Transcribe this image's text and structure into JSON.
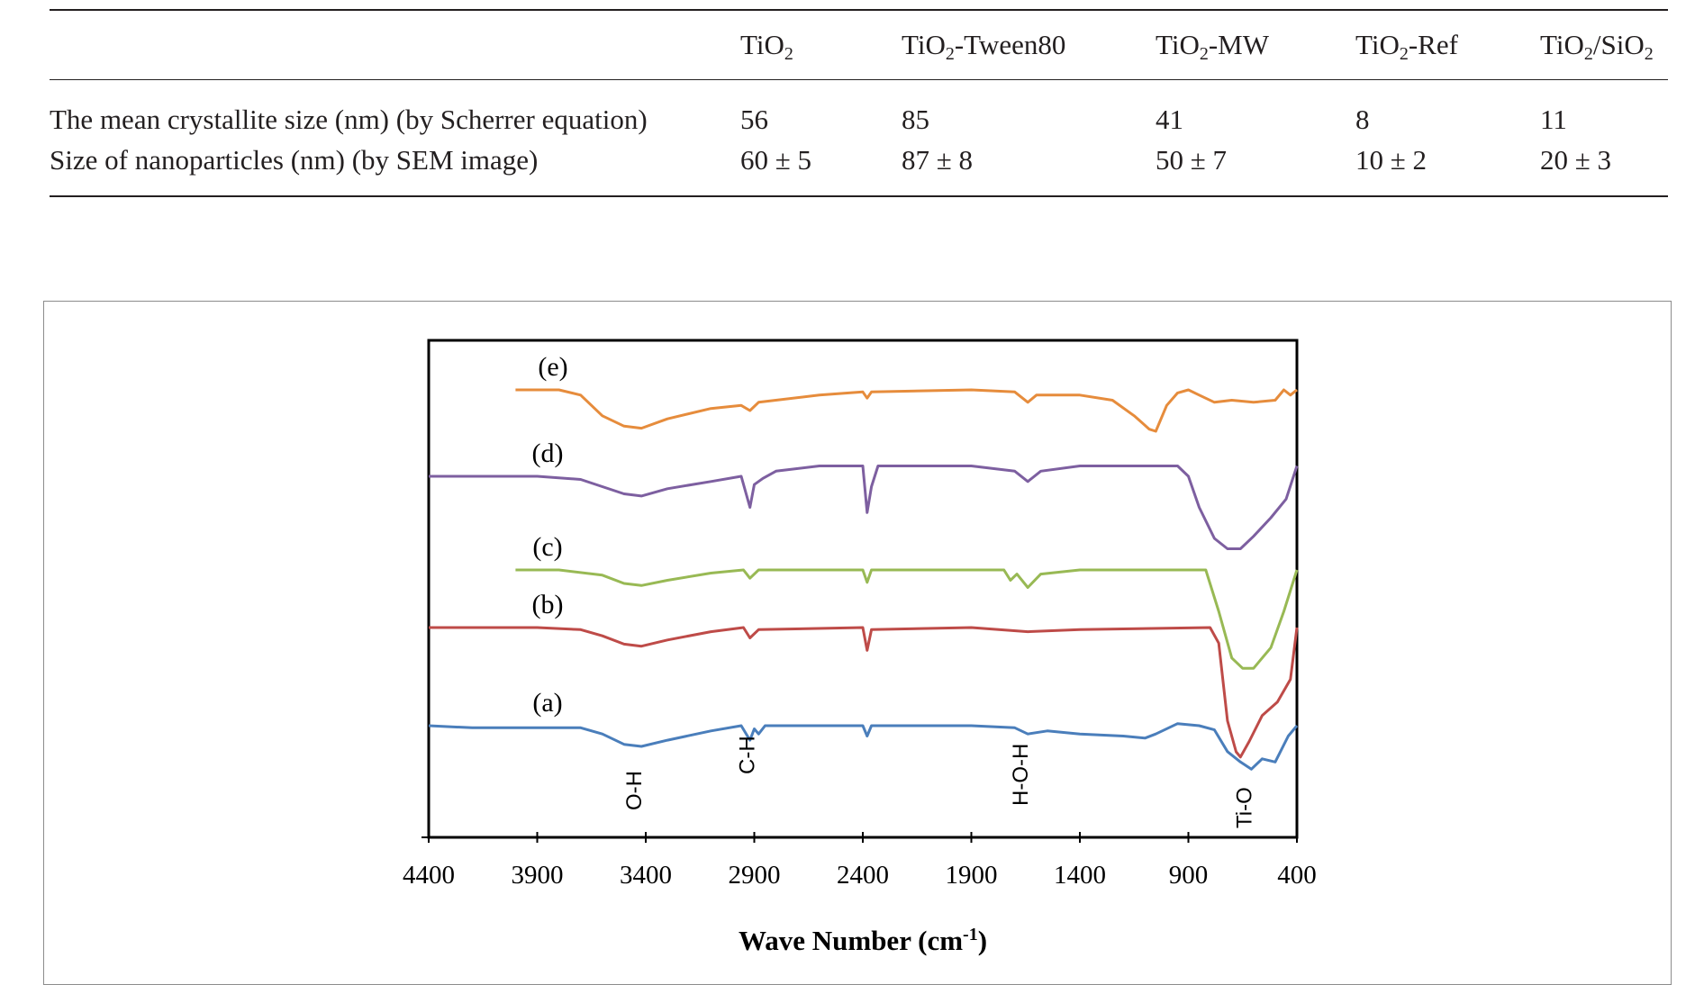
{
  "table": {
    "columns": [
      {
        "base": "",
        "sub": "",
        "rest": ""
      },
      {
        "base": "TiO",
        "sub": "2",
        "rest": ""
      },
      {
        "base": "TiO",
        "sub": "2",
        "rest": "-Tween80"
      },
      {
        "base": "TiO",
        "sub": "2",
        "rest": "-MW"
      },
      {
        "base": "TiO",
        "sub": "2",
        "rest": "-Ref"
      },
      {
        "base": "TiO",
        "sub": "2",
        "rest": "/SiO",
        "sub2": "2"
      }
    ],
    "rows": [
      {
        "label": "The mean crystallite size (nm) (by Scherrer equation)",
        "values": [
          "56",
          "85",
          "41",
          "8",
          "11"
        ]
      },
      {
        "label": "Size of nanoparticles (nm) (by SEM image)",
        "values": [
          "60 ± 5",
          "87 ± 8",
          "50 ± 7",
          "10 ± 2",
          "20 ± 3"
        ]
      }
    ]
  },
  "chart_data": {
    "type": "line",
    "xlabel": "Wave Number (cm",
    "xlabel_sup": "-1",
    "xlabel_close": ")",
    "xlim": [
      4400,
      400
    ],
    "x_ticks": [
      "4400",
      "3900",
      "3400",
      "2900",
      "2400",
      "1900",
      "1400",
      "900",
      "400"
    ],
    "x_tick_values": [
      4400,
      3900,
      3400,
      2900,
      2400,
      1900,
      1400,
      900,
      400
    ],
    "grid": false,
    "band_labels": [
      {
        "text": "O-H",
        "x": 3420
      },
      {
        "text": "C-H",
        "x": 2900
      },
      {
        "text": "H-O-H",
        "x": 1640
      },
      {
        "text": "Ti-O",
        "x": 610
      }
    ],
    "series": [
      {
        "label": "(a)",
        "color": "#4a7ebb",
        "points": [
          [
            4400,
            0.0
          ],
          [
            4200,
            -0.02
          ],
          [
            3900,
            -0.02
          ],
          [
            3700,
            -0.02
          ],
          [
            3600,
            -0.08
          ],
          [
            3500,
            -0.18
          ],
          [
            3420,
            -0.2
          ],
          [
            3300,
            -0.14
          ],
          [
            3100,
            -0.05
          ],
          [
            2960,
            0.0
          ],
          [
            2920,
            -0.14
          ],
          [
            2900,
            -0.03
          ],
          [
            2880,
            -0.08
          ],
          [
            2850,
            0.0
          ],
          [
            2400,
            0.0
          ],
          [
            2380,
            -0.1
          ],
          [
            2360,
            0.0
          ],
          [
            1900,
            0.0
          ],
          [
            1700,
            -0.02
          ],
          [
            1640,
            -0.08
          ],
          [
            1550,
            -0.05
          ],
          [
            1400,
            -0.08
          ],
          [
            1200,
            -0.1
          ],
          [
            1100,
            -0.12
          ],
          [
            1050,
            -0.08
          ],
          [
            950,
            0.02
          ],
          [
            850,
            0.0
          ],
          [
            780,
            -0.04
          ],
          [
            720,
            -0.25
          ],
          [
            660,
            -0.35
          ],
          [
            610,
            -0.42
          ],
          [
            560,
            -0.32
          ],
          [
            500,
            -0.35
          ],
          [
            440,
            -0.1
          ],
          [
            400,
            0.0
          ]
        ]
      },
      {
        "label": "(b)",
        "color": "#be4b48",
        "points": [
          [
            4400,
            0.0
          ],
          [
            3900,
            0.0
          ],
          [
            3700,
            -0.02
          ],
          [
            3600,
            -0.08
          ],
          [
            3500,
            -0.16
          ],
          [
            3420,
            -0.18
          ],
          [
            3300,
            -0.12
          ],
          [
            3100,
            -0.04
          ],
          [
            2950,
            0.0
          ],
          [
            2920,
            -0.1
          ],
          [
            2880,
            -0.02
          ],
          [
            2400,
            0.0
          ],
          [
            2380,
            -0.22
          ],
          [
            2360,
            -0.02
          ],
          [
            1900,
            0.0
          ],
          [
            1640,
            -0.04
          ],
          [
            1400,
            -0.02
          ],
          [
            800,
            0.0
          ],
          [
            760,
            -0.15
          ],
          [
            720,
            -0.9
          ],
          [
            680,
            -1.2
          ],
          [
            660,
            -1.25
          ],
          [
            620,
            -1.1
          ],
          [
            560,
            -0.85
          ],
          [
            490,
            -0.72
          ],
          [
            430,
            -0.5
          ],
          [
            400,
            0.0
          ]
        ]
      },
      {
        "label": "(c)",
        "color": "#98b954",
        "points": [
          [
            4000,
            0.0
          ],
          [
            3800,
            0.0
          ],
          [
            3600,
            -0.05
          ],
          [
            3500,
            -0.13
          ],
          [
            3420,
            -0.15
          ],
          [
            3300,
            -0.1
          ],
          [
            3100,
            -0.03
          ],
          [
            2950,
            0.0
          ],
          [
            2920,
            -0.08
          ],
          [
            2880,
            0.0
          ],
          [
            2400,
            0.0
          ],
          [
            2380,
            -0.12
          ],
          [
            2360,
            0.0
          ],
          [
            1750,
            0.0
          ],
          [
            1720,
            -0.1
          ],
          [
            1690,
            -0.04
          ],
          [
            1640,
            -0.17
          ],
          [
            1580,
            -0.04
          ],
          [
            1400,
            0.0
          ],
          [
            1100,
            0.0
          ],
          [
            820,
            0.0
          ],
          [
            760,
            -0.4
          ],
          [
            700,
            -0.85
          ],
          [
            650,
            -0.95
          ],
          [
            600,
            -0.95
          ],
          [
            520,
            -0.75
          ],
          [
            460,
            -0.4
          ],
          [
            400,
            0.0
          ]
        ]
      },
      {
        "label": "(d)",
        "color": "#7d5fa0",
        "points": [
          [
            4400,
            0.0
          ],
          [
            3900,
            0.0
          ],
          [
            3700,
            -0.03
          ],
          [
            3600,
            -0.1
          ],
          [
            3500,
            -0.17
          ],
          [
            3420,
            -0.19
          ],
          [
            3300,
            -0.12
          ],
          [
            3100,
            -0.05
          ],
          [
            2960,
            0.0
          ],
          [
            2920,
            -0.3
          ],
          [
            2900,
            -0.08
          ],
          [
            2860,
            -0.02
          ],
          [
            2800,
            0.05
          ],
          [
            2600,
            0.1
          ],
          [
            2400,
            0.1
          ],
          [
            2380,
            -0.35
          ],
          [
            2360,
            -0.1
          ],
          [
            2330,
            0.1
          ],
          [
            1900,
            0.1
          ],
          [
            1700,
            0.05
          ],
          [
            1640,
            -0.05
          ],
          [
            1580,
            0.05
          ],
          [
            1400,
            0.1
          ],
          [
            950,
            0.1
          ],
          [
            900,
            0.0
          ],
          [
            850,
            -0.3
          ],
          [
            780,
            -0.6
          ],
          [
            720,
            -0.7
          ],
          [
            660,
            -0.7
          ],
          [
            600,
            -0.58
          ],
          [
            520,
            -0.4
          ],
          [
            450,
            -0.22
          ],
          [
            400,
            0.1
          ]
        ]
      },
      {
        "label": "(e)",
        "color": "#e68c3c",
        "points": [
          [
            4000,
            0.0
          ],
          [
            3800,
            0.0
          ],
          [
            3700,
            -0.05
          ],
          [
            3600,
            -0.25
          ],
          [
            3500,
            -0.35
          ],
          [
            3420,
            -0.37
          ],
          [
            3300,
            -0.28
          ],
          [
            3100,
            -0.18
          ],
          [
            2960,
            -0.15
          ],
          [
            2920,
            -0.2
          ],
          [
            2880,
            -0.12
          ],
          [
            2600,
            -0.05
          ],
          [
            2400,
            -0.02
          ],
          [
            2380,
            -0.08
          ],
          [
            2360,
            -0.02
          ],
          [
            1900,
            0.0
          ],
          [
            1700,
            -0.02
          ],
          [
            1640,
            -0.12
          ],
          [
            1600,
            -0.05
          ],
          [
            1400,
            -0.05
          ],
          [
            1250,
            -0.1
          ],
          [
            1150,
            -0.25
          ],
          [
            1080,
            -0.38
          ],
          [
            1050,
            -0.4
          ],
          [
            1000,
            -0.15
          ],
          [
            950,
            -0.03
          ],
          [
            900,
            0.0
          ],
          [
            850,
            -0.05
          ],
          [
            780,
            -0.12
          ],
          [
            700,
            -0.1
          ],
          [
            600,
            -0.12
          ],
          [
            500,
            -0.1
          ],
          [
            460,
            0.0
          ],
          [
            430,
            -0.05
          ],
          [
            400,
            0.0
          ]
        ]
      }
    ]
  }
}
